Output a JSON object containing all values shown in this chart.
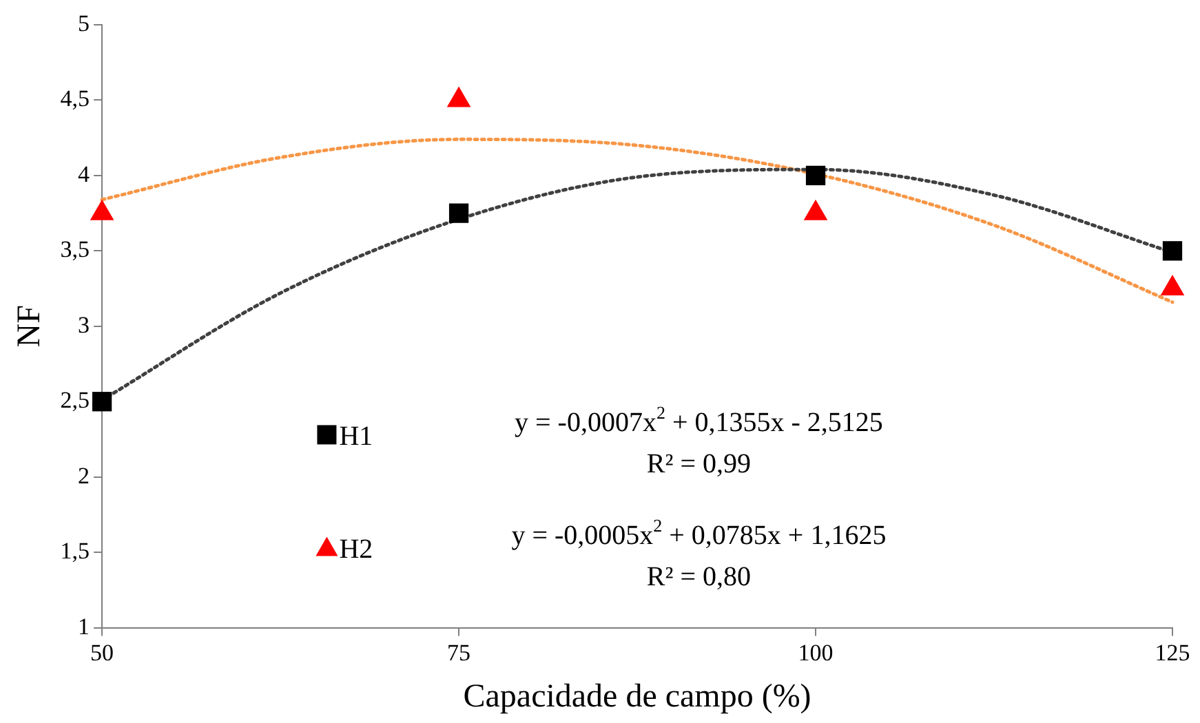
{
  "chart_data": {
    "type": "scatter",
    "xlabel": "Capacidade de campo (%)",
    "ylabel": "NF",
    "xlim": [
      50,
      125
    ],
    "xticks": [
      50,
      75,
      100,
      125
    ],
    "ylim": [
      1,
      5
    ],
    "yticks": [
      1,
      {
        "value": 1.5,
        "label": "1,5"
      },
      2,
      {
        "value": 2.5,
        "label": "2,5"
      },
      3,
      {
        "value": 3.5,
        "label": "3,5"
      },
      4,
      {
        "value": 4.5,
        "label": "4,5"
      },
      5
    ],
    "grid": false,
    "legend": "bottom left",
    "series": [
      {
        "name": "H1",
        "marker": "square",
        "color": "#000000",
        "x": [
          50,
          75,
          100,
          125
        ],
        "values": [
          2.5,
          3.75,
          4,
          3.5
        ]
      },
      {
        "name": "H2",
        "marker": "triangle",
        "color": "#ff0000",
        "x": [
          50,
          75,
          100,
          125
        ],
        "values": [
          3.75,
          4.5,
          3.75,
          3.25
        ]
      },
      {
        "type": "line",
        "marker": "none",
        "line_style": "dotted",
        "color": "#404040",
        "x": [
          50,
          62.5,
          75,
          87.5,
          100,
          112.5,
          125
        ],
        "values": [
          2.51,
          3.22,
          3.71,
          3.99,
          4.04,
          3.87,
          3.49
        ]
      },
      {
        "type": "line",
        "marker": "none",
        "line_style": "dotted",
        "color": "#f79646",
        "x": [
          50,
          62.5,
          75,
          87.5,
          100,
          112.5,
          125
        ],
        "values": [
          3.84,
          4.12,
          4.24,
          4.2,
          4.01,
          3.67,
          3.16
        ]
      }
    ],
    "annotations": [
      "y = -0,0007x$^{2}$ + 0,1355x - 2,5125",
      "R² = 0,99",
      "y = -0,0005x$^{2}$ + 0,0785x + 1,1625",
      "R² = 0,80"
    ]
  }
}
